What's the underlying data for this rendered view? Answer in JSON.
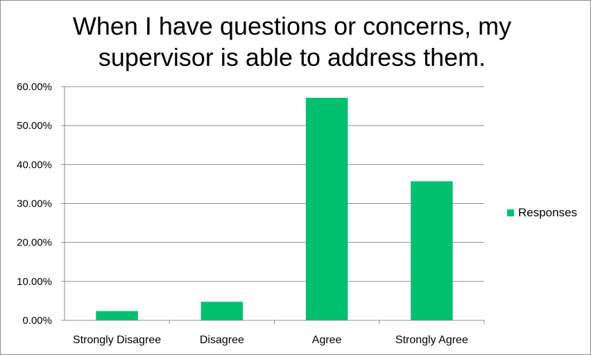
{
  "chart_data": {
    "type": "bar",
    "title": "When I have questions or concerns, my\nsupervisor is able to address them.",
    "categories": [
      "Strongly Disagree",
      "Disagree",
      "Agree",
      "Strongly Agree"
    ],
    "series": [
      {
        "name": "Responses",
        "values": [
          2.38,
          4.76,
          57.14,
          35.71
        ],
        "color": "#00bf6f"
      }
    ],
    "xlabel": "",
    "ylabel": "",
    "ylim": [
      0,
      60
    ],
    "yticks": [
      0,
      10,
      20,
      30,
      40,
      50,
      60
    ],
    "ytick_labels": [
      "0.00%",
      "10.00%",
      "20.00%",
      "30.00%",
      "40.00%",
      "50.00%",
      "60.00%"
    ],
    "grid": true,
    "legend_position": "right"
  }
}
